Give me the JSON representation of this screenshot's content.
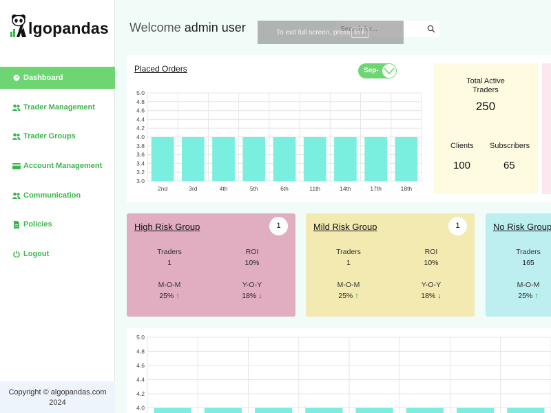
{
  "app": {
    "logo_text": "lgopandas",
    "logo_letter": "A"
  },
  "sidebar": {
    "items": [
      {
        "label": "Dashboard",
        "icon": "dashboard-icon",
        "active": true
      },
      {
        "label": "Trader Management",
        "icon": "users-icon"
      },
      {
        "label": "Trader Groups",
        "icon": "users-icon"
      },
      {
        "label": "Account Management",
        "icon": "card-icon"
      },
      {
        "label": "Communication",
        "icon": "users-icon"
      },
      {
        "label": "Policies",
        "icon": "document-icon"
      },
      {
        "label": "Logout",
        "icon": "power-icon"
      }
    ],
    "copyright_line1": "Copyright © algopandas.com",
    "copyright_line2": "2024"
  },
  "header": {
    "welcome_prefix": "Welcome",
    "welcome_user": "admin user",
    "search_placeholder": "Search for...",
    "fullscreen_notice": "To exit full screen, press",
    "fullscreen_key": "fn F"
  },
  "orders": {
    "title": "Placed Orders",
    "month_selected": "Sep-",
    "accent": "#6dd672",
    "bar_color": "#7aefe0"
  },
  "stats": {
    "total_label_line1": "Total Active",
    "total_label_line2": "Traders",
    "total_value": "250",
    "clients_label": "Clients",
    "clients_value": "100",
    "subscribers_label": "Subscribers",
    "subscribers_value": "65"
  },
  "risk_groups": [
    {
      "title": "High Risk Group",
      "badge": "1",
      "traders_label": "Traders",
      "traders": "1",
      "roi_label": "ROI",
      "roi": "10%",
      "mom_label": "M-O-M",
      "mom": "25%",
      "mom_dir": "up",
      "yoy_label": "Y-O-Y",
      "yoy": "18%",
      "yoy_dir": "down",
      "color": "#e0aec0"
    },
    {
      "title": "Mild Risk Group",
      "badge": "1",
      "traders_label": "Traders",
      "traders": "1",
      "roi_label": "ROI",
      "roi": "10%",
      "mom_label": "M-O-M",
      "mom": "25%",
      "mom_dir": "up",
      "yoy_label": "Y-O-Y",
      "yoy": "18%",
      "yoy_dir": "down",
      "color": "#f2eab0"
    },
    {
      "title": "No Risk Group",
      "traders_label": "Traders",
      "traders": "165",
      "mom_label": "M-O-M",
      "mom": "25%",
      "mom_dir": "up",
      "color": "#bdeff1"
    }
  ],
  "chart_data": [
    {
      "type": "bar",
      "categories": [
        "2nd",
        "3rd",
        "4th",
        "5th",
        "6th",
        "11th",
        "14th",
        "17th",
        "18th"
      ],
      "values": [
        4.0,
        4.0,
        4.0,
        4.0,
        4.0,
        4.0,
        4.0,
        4.0,
        4.0
      ],
      "yticks": [
        "5.0",
        "4.8",
        "4.6",
        "4.4",
        "4.2",
        "4.0",
        "3.8",
        "3.6",
        "3.4",
        "3.2",
        "3.0"
      ],
      "ylim": [
        3.0,
        5.0
      ],
      "grid": true
    },
    {
      "type": "bar",
      "categories": [
        "",
        "",
        "",
        "",
        "",
        "",
        "",
        ""
      ],
      "values": [
        4.0,
        4.0,
        4.0,
        4.0,
        4.0,
        4.0,
        4.0,
        4.0
      ],
      "yticks": [
        "5.0",
        "4.8",
        "4.6",
        "4.4",
        "4.2",
        "4.0"
      ],
      "ylim": [
        3.0,
        5.0
      ],
      "grid": true
    }
  ]
}
